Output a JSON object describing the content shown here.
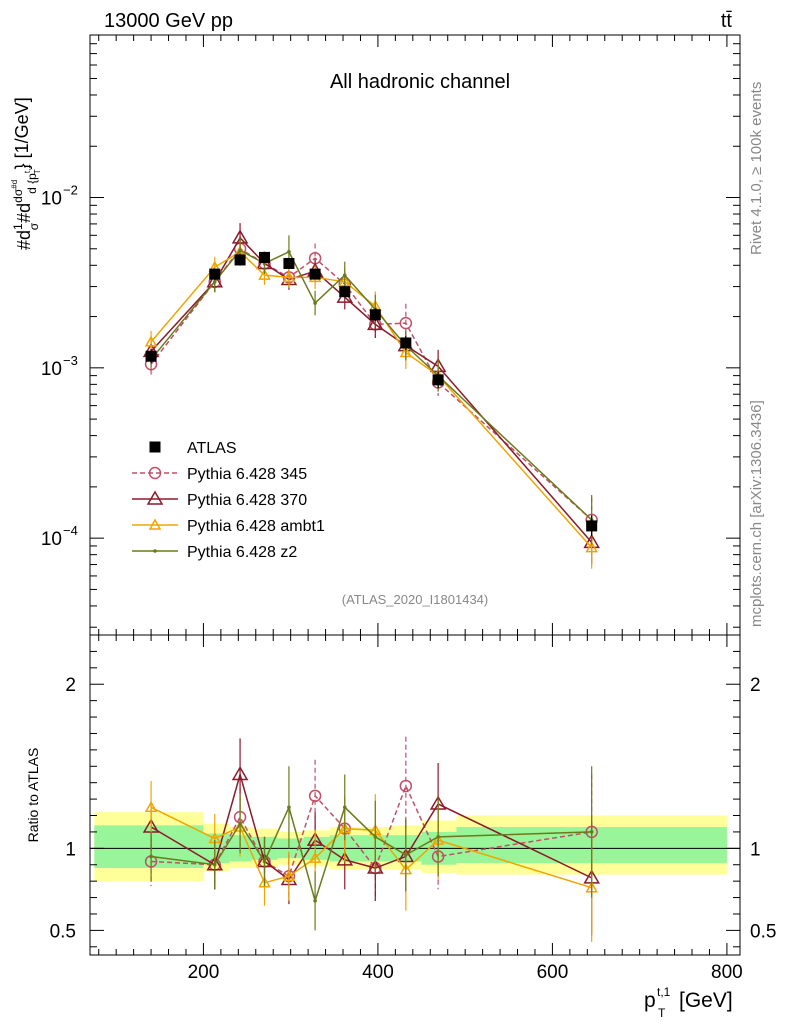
{
  "header": {
    "energy_label": "13000 GeV pp",
    "process_label": "tt̄"
  },
  "side": {
    "rivet_label": "Rivet 4.1.0, ≥ 100k events",
    "mcplots_label": "mcplots.cern.ch [arXiv:1306.3436]"
  },
  "chart_data": {
    "type": "line",
    "title": "All hadronic channel",
    "analysis_id": "(ATLAS_2020_I1801434)",
    "xlabel_main": "p",
    "xlabel_sup": "t,1",
    "xlabel_sub": "T",
    "xlabel_unit": "[GeV]",
    "ylabel": "#d1/σ#ddσ/d{p_T^t,1} [1/GeV]",
    "ratio_ylabel": "Ratio to ATLAS",
    "xlim": [
      70,
      815
    ],
    "ylim": [
      2.7e-05,
      0.09
    ],
    "ratio_ylim": [
      0.35,
      2.3
    ],
    "x_ticks": [
      200,
      400,
      600,
      800
    ],
    "x_tick_labels": [
      "200",
      "400",
      "600",
      "800"
    ],
    "y_ticks": [
      0.0001,
      0.001,
      0.01
    ],
    "y_tick_labels": [
      "10",
      "10",
      "10"
    ],
    "y_tick_exps": [
      "−4",
      "−3",
      "−2"
    ],
    "ratio_ticks": [
      0.5,
      1,
      2
    ],
    "ratio_tick_labels": [
      "0.5",
      "1",
      "2"
    ],
    "bins": [
      {
        "lo": 75,
        "hi": 200,
        "stat_lo": 0.88,
        "stat_hi": 1.14,
        "tot_lo": 0.8,
        "tot_hi": 1.22
      },
      {
        "lo": 200,
        "hi": 230,
        "stat_lo": 0.91,
        "stat_hi": 1.09,
        "tot_lo": 0.86,
        "tot_hi": 1.15
      },
      {
        "lo": 230,
        "hi": 255,
        "stat_lo": 0.92,
        "stat_hi": 1.08,
        "tot_lo": 0.88,
        "tot_hi": 1.13
      },
      {
        "lo": 255,
        "hi": 285,
        "stat_lo": 0.93,
        "stat_hi": 1.07,
        "tot_lo": 0.88,
        "tot_hi": 1.12
      },
      {
        "lo": 285,
        "hi": 315,
        "stat_lo": 0.94,
        "stat_hi": 1.06,
        "tot_lo": 0.9,
        "tot_hi": 1.1
      },
      {
        "lo": 315,
        "hi": 345,
        "stat_lo": 0.93,
        "stat_hi": 1.07,
        "tot_lo": 0.89,
        "tot_hi": 1.11
      },
      {
        "lo": 345,
        "hi": 380,
        "stat_lo": 0.92,
        "stat_hi": 1.08,
        "tot_lo": 0.87,
        "tot_hi": 1.13
      },
      {
        "lo": 380,
        "hi": 415,
        "stat_lo": 0.92,
        "stat_hi": 1.08,
        "tot_lo": 0.87,
        "tot_hi": 1.13
      },
      {
        "lo": 415,
        "hi": 450,
        "stat_lo": 0.92,
        "stat_hi": 1.08,
        "tot_lo": 0.87,
        "tot_hi": 1.14
      },
      {
        "lo": 450,
        "hi": 490,
        "stat_lo": 0.9,
        "stat_hi": 1.1,
        "tot_lo": 0.85,
        "tot_hi": 1.17
      },
      {
        "lo": 490,
        "hi": 800,
        "stat_lo": 0.91,
        "stat_hi": 1.13,
        "tot_lo": 0.84,
        "tot_hi": 1.2
      }
    ],
    "series": [
      {
        "name": "ATLAS",
        "color": "#000000",
        "marker": "square",
        "dash": "",
        "x": [
          140,
          213,
          242,
          270,
          298,
          328,
          362,
          397,
          432,
          469,
          645
        ],
        "y": [
          0.00117,
          0.00355,
          0.0043,
          0.00445,
          0.0041,
          0.00355,
          0.0028,
          0.00205,
          0.0014,
          0.00085,
          0.000118
        ],
        "err": [
          0.1,
          0.08,
          0.08,
          0.08,
          0.07,
          0.07,
          0.08,
          0.09,
          0.1,
          0.12,
          0.15
        ]
      },
      {
        "name": "Pythia 6.428 345",
        "color": "#c0506a",
        "marker": "circle",
        "dash": "5,3",
        "x": [
          140,
          213,
          242,
          270,
          298,
          328,
          362,
          397,
          432,
          469,
          645
        ],
        "y": [
          0.00105,
          0.0032,
          0.005,
          0.0041,
          0.0034,
          0.0044,
          0.0031,
          0.0018,
          0.00183,
          0.00082,
          0.000128
        ],
        "ratio": [
          0.92,
          0.9,
          1.19,
          0.92,
          0.83,
          1.32,
          1.12,
          0.88,
          1.38,
          0.95,
          1.1
        ],
        "err": [
          0.15,
          0.15,
          0.18,
          0.15,
          0.15,
          0.22,
          0.18,
          0.2,
          0.3,
          0.2,
          0.35
        ]
      },
      {
        "name": "Pythia 6.428 370",
        "color": "#8b1a2b",
        "marker": "triangle",
        "dash": "",
        "x": [
          140,
          213,
          242,
          270,
          298,
          328,
          362,
          397,
          432,
          469,
          645
        ],
        "y": [
          0.00125,
          0.0032,
          0.0058,
          0.0041,
          0.0033,
          0.0037,
          0.0026,
          0.0018,
          0.00135,
          0.00102,
          9.45e-05
        ],
        "ratio": [
          1.13,
          0.9,
          1.45,
          0.92,
          0.81,
          1.05,
          0.93,
          0.88,
          0.95,
          1.27,
          0.82
        ],
        "err": [
          0.15,
          0.15,
          0.22,
          0.15,
          0.15,
          0.17,
          0.18,
          0.2,
          0.22,
          0.25,
          0.35
        ]
      },
      {
        "name": "Pythia 6.428 ambt1",
        "color": "#f0a500",
        "marker": "triangle-small",
        "dash": "",
        "x": [
          140,
          213,
          242,
          270,
          298,
          328,
          362,
          397,
          432,
          469,
          645
        ],
        "y": [
          0.00142,
          0.0039,
          0.0048,
          0.0035,
          0.0034,
          0.0034,
          0.0032,
          0.0023,
          0.00123,
          0.0009,
          8.8e-05
        ],
        "ratio": [
          1.25,
          1.06,
          1.13,
          0.79,
          0.83,
          0.94,
          1.12,
          1.11,
          0.87,
          1.05,
          0.76
        ],
        "err": [
          0.16,
          0.15,
          0.18,
          0.14,
          0.15,
          0.17,
          0.2,
          0.22,
          0.25,
          0.24,
          0.33
        ]
      },
      {
        "name": "Pythia 6.428 z2",
        "color": "#6b7a1a",
        "marker": "dot",
        "dash": "",
        "x": [
          140,
          213,
          242,
          270,
          298,
          328,
          362,
          397,
          432,
          469,
          645
        ],
        "y": [
          0.00112,
          0.0032,
          0.0049,
          0.0041,
          0.0048,
          0.0024,
          0.0035,
          0.0022,
          0.00135,
          0.0009,
          0.000128
        ],
        "ratio": [
          0.95,
          0.9,
          1.15,
          0.92,
          1.25,
          0.68,
          1.25,
          1.07,
          0.96,
          1.07,
          1.1
        ],
        "err": [
          0.15,
          0.15,
          0.18,
          0.15,
          0.25,
          0.18,
          0.2,
          0.22,
          0.22,
          0.24,
          0.4
        ]
      }
    ]
  }
}
